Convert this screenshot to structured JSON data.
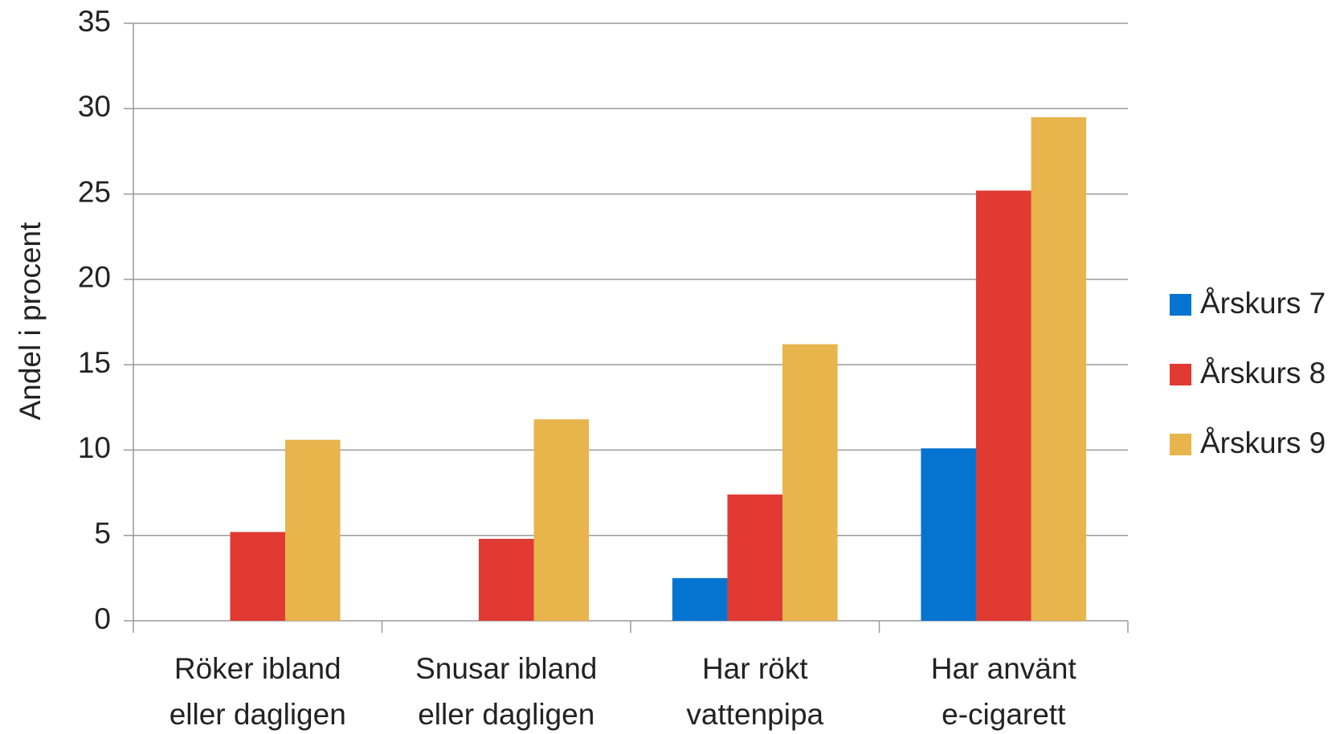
{
  "chart_data": {
    "type": "bar",
    "y_label": "Andel i procent",
    "categories": [
      "Röker ibland\neller dagligen",
      "Snusar ibland\neller dagligen",
      "Har rökt\nvattenpipa",
      "Har använt\ne-cigarett"
    ],
    "series": [
      {
        "name": "Årskurs 7",
        "color": "#0474d0",
        "values": [
          null,
          null,
          2.5,
          10.1
        ]
      },
      {
        "name": "Årskurs 8",
        "color": "#e03a33",
        "values": [
          5.2,
          4.8,
          7.4,
          25.2
        ]
      },
      {
        "name": "Årskurs 9",
        "color": "#e8b44c",
        "values": [
          10.6,
          11.8,
          16.2,
          29.5
        ]
      }
    ],
    "ylim": [
      0,
      35
    ],
    "yticks": [
      0,
      5,
      10,
      15,
      20,
      25,
      30,
      35
    ],
    "grid": true,
    "legend": "right"
  }
}
